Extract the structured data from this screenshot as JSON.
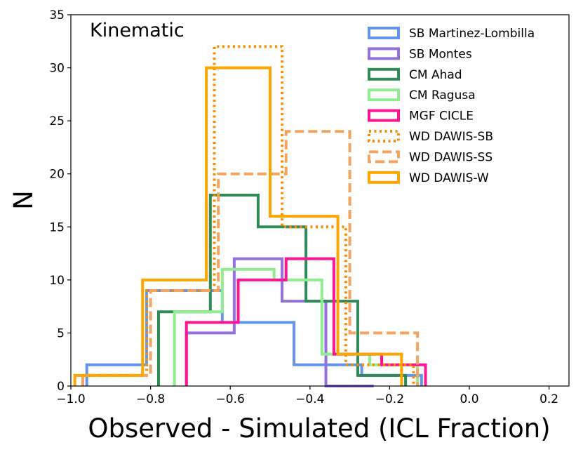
{
  "chart_data": {
    "type": "histogram",
    "annotation": "Kinematic",
    "xlabel": "Observed - Simulated (ICL Fraction)",
    "ylabel": "N",
    "xlim": [
      -1.0,
      0.25
    ],
    "ylim": [
      0,
      35
    ],
    "xticks": [
      -1.0,
      -0.8,
      -0.6,
      -0.4,
      -0.2,
      0.0,
      0.2
    ],
    "xtick_labels": [
      "−1.0",
      "−0.8",
      "−0.6",
      "−0.4",
      "−0.2",
      "0.0",
      "0.2"
    ],
    "yticks": [
      0,
      5,
      10,
      15,
      20,
      25,
      30,
      35
    ],
    "ytick_labels": [
      "0",
      "5",
      "10",
      "15",
      "20",
      "25",
      "30",
      "35"
    ],
    "legend_position": "top-right",
    "series": [
      {
        "name": "SB Martinez-Lombilla",
        "color": "#6495ED",
        "style": "solid",
        "edges": [
          -0.96,
          -0.81,
          -0.62,
          -0.44,
          -0.27,
          -0.12
        ],
        "counts": [
          2,
          9,
          6,
          2,
          1
        ]
      },
      {
        "name": "SB Montes",
        "color": "#9370DB",
        "style": "solid",
        "edges": [
          -0.71,
          -0.59,
          -0.47,
          -0.36,
          -0.24
        ],
        "counts": [
          5,
          12,
          8,
          0
        ]
      },
      {
        "name": "CM Ahad",
        "color": "#2E8B57",
        "style": "solid",
        "edges": [
          -0.78,
          -0.65,
          -0.53,
          -0.41,
          -0.28,
          -0.16
        ],
        "counts": [
          7,
          18,
          15,
          8,
          1
        ]
      },
      {
        "name": "CM Ragusa",
        "color": "#90EE90",
        "style": "solid",
        "edges": [
          -0.74,
          -0.62,
          -0.49,
          -0.37,
          -0.25,
          -0.13
        ],
        "counts": [
          7,
          11,
          10,
          3,
          2
        ]
      },
      {
        "name": "MGF CICLE",
        "color": "#FF1493",
        "style": "solid",
        "edges": [
          -0.71,
          -0.58,
          -0.46,
          -0.34,
          -0.22,
          -0.11
        ],
        "counts": [
          6,
          10,
          12,
          3,
          2
        ]
      },
      {
        "name": "WD DAWIS-SB",
        "color": "#FF8C00",
        "style": "dotted",
        "edges": [
          -0.97,
          -0.81,
          -0.64,
          -0.47,
          -0.31,
          -0.14
        ],
        "counts": [
          1,
          9,
          32,
          15,
          2
        ]
      },
      {
        "name": "WD DAWIS-SS",
        "color": "#F4A460",
        "style": "dashed",
        "edges": [
          -0.97,
          -0.8,
          -0.63,
          -0.46,
          -0.3,
          -0.13
        ],
        "counts": [
          1,
          9,
          20,
          24,
          5
        ]
      },
      {
        "name": "WD DAWIS-W",
        "color": "#FFA500",
        "style": "solid",
        "edges": [
          -0.99,
          -0.82,
          -0.66,
          -0.5,
          -0.33,
          -0.17
        ],
        "counts": [
          1,
          10,
          30,
          16,
          3
        ]
      }
    ]
  }
}
